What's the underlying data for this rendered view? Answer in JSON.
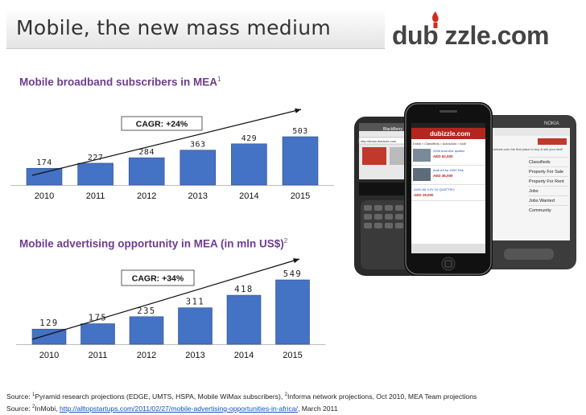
{
  "header": {
    "title": "Mobile, the new mass medium",
    "brand": "dub zzle.com"
  },
  "chart_data": [
    {
      "type": "bar",
      "title": "Mobile broadband subscribers in MEA",
      "title_note": "1",
      "categories": [
        "2010",
        "2011",
        "2012",
        "2013",
        "2014",
        "2015"
      ],
      "values": [
        174,
        227,
        284,
        363,
        429,
        503
      ],
      "annotation": "CAGR: +24%",
      "bar_color": "#4472c4",
      "ylim": [
        0,
        503
      ]
    },
    {
      "type": "bar",
      "title": "Mobile advertising opportunity in MEA (in mln US$)",
      "title_note": "2",
      "categories": [
        "2010",
        "2011",
        "2012",
        "2013",
        "2014",
        "2015"
      ],
      "values": [
        129,
        175,
        235,
        311,
        418,
        549
      ],
      "annotation": "CAGR: +34%",
      "bar_color": "#4472c4",
      "ylim": [
        0,
        549
      ]
    }
  ],
  "phones": {
    "app_logo": "dubizzle.com",
    "left_brand": "BlackBerry",
    "right_brand": "NOKIA",
    "left_url": "http://dubai.dubizzle.com",
    "nav": "Dubai > Classifieds > AutosAuto > Audi",
    "listings": [
      {
        "title": "2006 Audi A6L quattro",
        "price": "AED 52,000"
      },
      {
        "title": "Audi A3 for 2000 Dhs",
        "price": "AED 36,000"
      },
      {
        "title": "AUDI A6 4.2V 10 QUATTRO",
        "price": "AED 19,000"
      }
    ],
    "right_intro": "dubizzle.com the first place to buy & sell your stuff",
    "right_menu": [
      "Classifieds",
      "Property For Sale",
      "Property For Rent",
      "Jobs",
      "Jobs Wanted",
      "Community"
    ]
  },
  "footer": {
    "source1_prefix": "Source: ",
    "source1_note": "1",
    "source1_a": "Pyramid research projections (EDGE, UMTS,  HSPA, Mobile WiMax subscribers), ",
    "source1_note2": "2",
    "source1_b": "Informa network projections, Oct 2010, MEA Team projections",
    "source2_prefix": "Source: ",
    "source2_note": "2",
    "source2_a": "InMobi, ",
    "source2_link": "http://alltopstartups.com/2011/02/27/mobile-advertising-opportunities-in-africa/",
    "source2_b": ", March 2011"
  }
}
